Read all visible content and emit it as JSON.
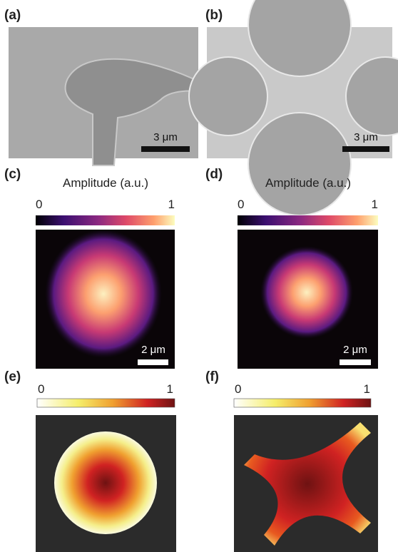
{
  "panels": [
    {
      "label": "(a)",
      "scale_bar": "3 μm"
    },
    {
      "label": "(b)",
      "scale_bar": "3 μm"
    },
    {
      "label": "(c)",
      "colorbar_title": "Amplitude (a.u.)",
      "colorbar_min": 0,
      "colorbar_max": 1,
      "scale_bar": "2 μm"
    },
    {
      "label": "(d)",
      "colorbar_title": "Amplitude (a.u.)",
      "colorbar_min": 0,
      "colorbar_max": 1,
      "scale_bar": "2 μm"
    },
    {
      "label": "(e)",
      "colorbar_min": 0,
      "colorbar_max": 1
    },
    {
      "label": "(f)",
      "colorbar_min": 0,
      "colorbar_max": 1
    }
  ]
}
